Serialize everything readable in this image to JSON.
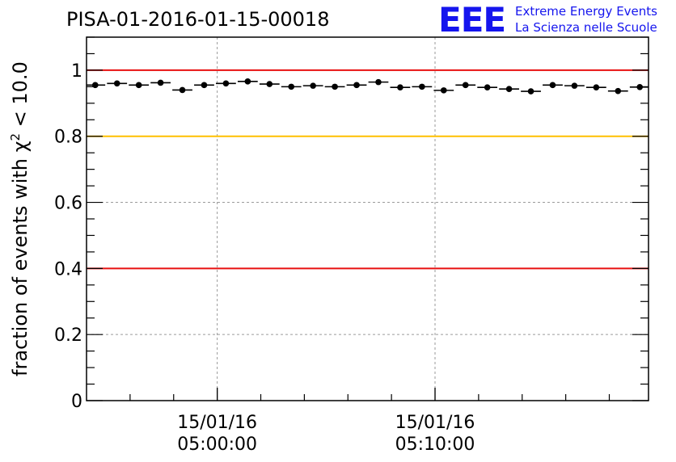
{
  "header": {
    "title": "PISA-01-2016-01-15-00018"
  },
  "logo": {
    "mark": "EEE",
    "line1": "Extreme Energy Events",
    "line2": "La Scienza nelle Scuole",
    "color": "#1515ee"
  },
  "chart_data": {
    "type": "scatter",
    "title": "PISA-01-2016-01-15-00018",
    "ylabel_prefix": "fraction of events with χ",
    "ylabel_sup": "2",
    "ylabel_suffix": " < 10.0",
    "xlabel": "",
    "ylim": [
      0,
      1.1
    ],
    "yticks": [
      0,
      0.2,
      0.4,
      0.6,
      0.8,
      1
    ],
    "yticklabels": [
      "0",
      "0.2",
      "0.4",
      "0.6",
      "0.8",
      "1"
    ],
    "x_unit": "minutes after 15/01/16 04:54:00",
    "xlim": [
      0,
      25.8
    ],
    "xticks": [
      {
        "x": 6,
        "label": [
          "15/01/16",
          "05:00:00"
        ]
      },
      {
        "x": 16,
        "label": [
          "15/01/16",
          "05:10:00"
        ]
      }
    ],
    "x_minor_step": 2,
    "grid": true,
    "bin_width": 0.92,
    "series": [
      {
        "x": [
          0.4,
          1.4,
          2.4,
          3.4,
          4.4,
          5.4,
          6.4,
          7.4,
          8.4,
          9.4,
          10.4,
          11.4,
          12.4,
          13.4,
          14.4,
          15.4,
          16.4,
          17.4,
          18.4,
          19.4,
          20.4,
          21.4,
          22.4,
          23.4,
          24.4,
          25.4
        ],
        "values": [
          0.955,
          0.96,
          0.955,
          0.962,
          0.94,
          0.955,
          0.96,
          0.966,
          0.958,
          0.95,
          0.953,
          0.95,
          0.955,
          0.964,
          0.948,
          0.95,
          0.939,
          0.955,
          0.948,
          0.943,
          0.936,
          0.955,
          0.953,
          0.948,
          0.937,
          0.949
        ]
      }
    ],
    "reference_lines": [
      {
        "y": 1.0,
        "color": "#e81010"
      },
      {
        "y": 0.8,
        "color": "#ffc000"
      },
      {
        "y": 0.4,
        "color": "#e81010"
      }
    ]
  }
}
